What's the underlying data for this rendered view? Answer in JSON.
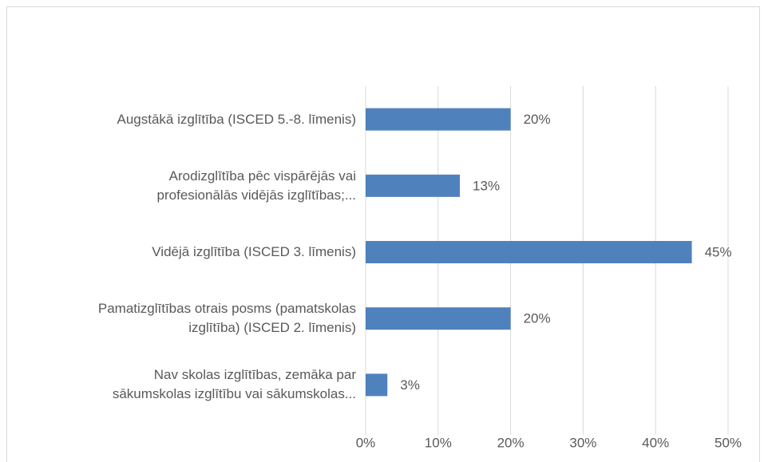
{
  "chart_data": {
    "type": "bar",
    "orientation": "horizontal",
    "categories": [
      "Augstākā izglītība (ISCED 5.-8. līmenis)",
      "Arodizglītība pēc vispārējās vai\nprofesionālās vidējās izglītības;...",
      "Vidējā izglītība (ISCED 3. līmenis)",
      "Pamatizglītības otrais posms (pamatskolas\nizglītība) (ISCED 2. līmenis)",
      "Nav skolas izglītības, zemāka par\nsākumskolas izglītību vai sākumskolas..."
    ],
    "values": [
      20,
      13,
      45,
      20,
      3
    ],
    "value_labels": [
      "20%",
      "13%",
      "45%",
      "20%",
      "3%"
    ],
    "color": "#4f81bd",
    "xlim": [
      0,
      50
    ],
    "xticks": [
      {
        "value": 0,
        "label": "0%"
      },
      {
        "value": 10,
        "label": "10%"
      },
      {
        "value": 20,
        "label": "20%"
      },
      {
        "value": 30,
        "label": "30%"
      },
      {
        "value": 40,
        "label": "40%"
      },
      {
        "value": 50,
        "label": "50%"
      }
    ],
    "grid": true
  }
}
